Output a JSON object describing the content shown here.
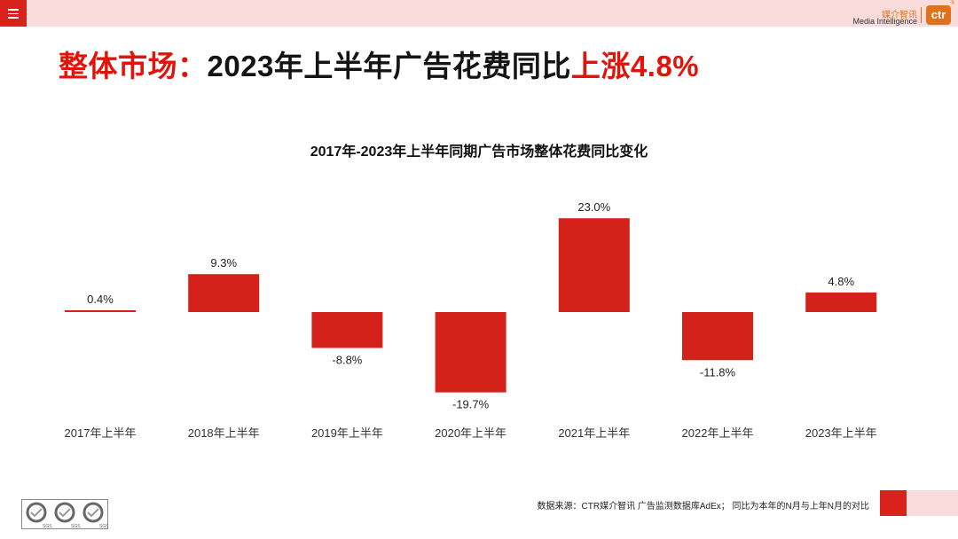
{
  "header": {
    "menu_icon": "hamburger-menu-icon",
    "brand_cn": "媒介智讯",
    "brand_en": "Media Intelligence",
    "brand_logo": "ctr",
    "brand_reg": "®"
  },
  "headline": {
    "part1": "整体市场：",
    "part2": "2023年上半年广告花费同比",
    "part3": "上涨4.8%"
  },
  "chart_data": {
    "type": "bar",
    "title": "2017年-2023年上半年同期广告市场整体花费同比变化",
    "categories": [
      "2017年上半年",
      "2018年上半年",
      "2019年上半年",
      "2020年上半年",
      "2021年上半年",
      "2022年上半年",
      "2023年上半年"
    ],
    "values": [
      0.4,
      9.3,
      -8.8,
      -19.7,
      23.0,
      -11.8,
      4.8
    ],
    "value_labels": [
      "0.4%",
      "9.3%",
      "-8.8%",
      "-19.7%",
      "23.0%",
      "-11.8%",
      "4.8%"
    ],
    "unit": "%",
    "bar_color": "#d4221b",
    "ylim": [
      -25,
      25
    ],
    "xlabel": "",
    "ylabel": "",
    "grid": false
  },
  "footer": {
    "source": "数据来源：CTR媒介智讯 广告监测数据库AdEx； 同比为本年的N月与上年N月的对比",
    "sgs_label": "SGS"
  }
}
